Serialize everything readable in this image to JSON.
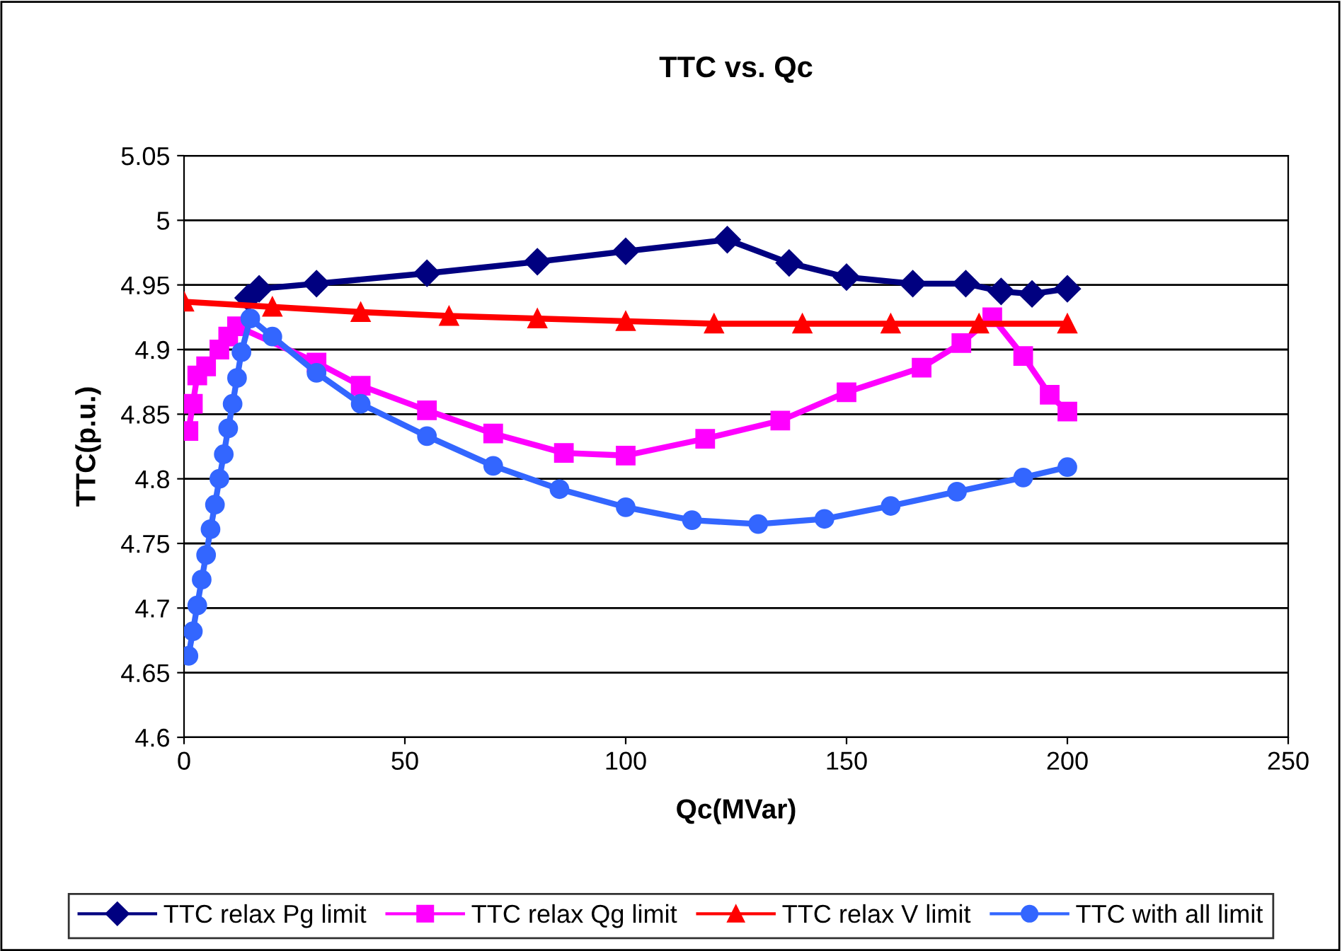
{
  "chart_data": {
    "type": "line",
    "title": "TTC vs. Qc",
    "xlabel": "Qc(MVar)",
    "ylabel": "TTC(p.u.)",
    "xlim": [
      0,
      250
    ],
    "xticks": [
      0,
      50,
      100,
      150,
      200,
      250
    ],
    "ylim": [
      4.6,
      5.05
    ],
    "yticks": [
      4.6,
      4.65,
      4.7,
      4.75,
      4.8,
      4.85,
      4.9,
      4.95,
      5,
      5.05
    ],
    "grid": "y",
    "legend": "bottom",
    "line_style": "solid",
    "series": [
      {
        "name": "TTC relax Pg limit",
        "color": "#000080",
        "marker": "diamond",
        "x": [
          14.5,
          17,
          30,
          55,
          80,
          100,
          123,
          137,
          150,
          165,
          177,
          185,
          192,
          200
        ],
        "values": [
          4.94,
          4.947,
          4.951,
          4.959,
          4.968,
          4.976,
          4.985,
          4.967,
          4.956,
          4.951,
          4.951,
          4.945,
          4.943,
          4.947
        ]
      },
      {
        "name": "TTC relax Qg limit",
        "color": "#ff00ff",
        "marker": "square",
        "x": [
          1,
          2,
          3,
          5,
          8,
          10,
          12,
          30,
          40,
          55,
          70,
          86,
          100,
          118,
          135,
          150,
          167,
          176,
          183,
          190,
          196,
          200
        ],
        "values": [
          4.837,
          4.858,
          4.88,
          4.887,
          4.9,
          4.91,
          4.918,
          4.89,
          4.872,
          4.853,
          4.835,
          4.82,
          4.818,
          4.831,
          4.845,
          4.867,
          4.886,
          4.905,
          4.925,
          4.895,
          4.865,
          4.852
        ]
      },
      {
        "name": "TTC relax V limit",
        "color": "#ff0000",
        "marker": "triangle",
        "x": [
          0,
          20,
          40,
          60,
          80,
          100,
          120,
          140,
          160,
          180,
          200
        ],
        "values": [
          4.937,
          4.933,
          4.929,
          4.926,
          4.924,
          4.922,
          4.92,
          4.92,
          4.92,
          4.92,
          4.92
        ]
      },
      {
        "name": "TTC with all limit",
        "color": "#3366ff",
        "marker": "circle",
        "x": [
          1,
          2,
          3,
          4,
          5,
          6,
          7,
          8,
          9,
          10,
          11,
          12,
          13,
          15,
          20,
          30,
          40,
          55,
          70,
          85,
          100,
          115,
          130,
          145,
          160,
          175,
          190,
          200
        ],
        "values": [
          4.663,
          4.682,
          4.702,
          4.722,
          4.741,
          4.761,
          4.78,
          4.8,
          4.819,
          4.839,
          4.858,
          4.878,
          4.898,
          4.924,
          4.91,
          4.882,
          4.858,
          4.833,
          4.81,
          4.792,
          4.778,
          4.768,
          4.765,
          4.769,
          4.779,
          4.79,
          4.801,
          4.809
        ]
      }
    ]
  }
}
